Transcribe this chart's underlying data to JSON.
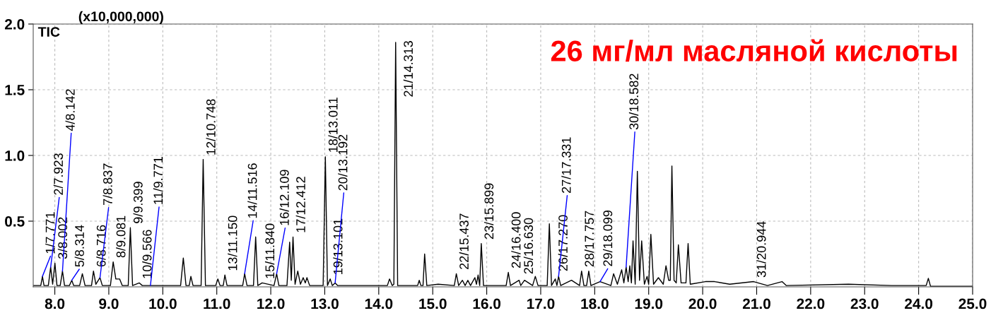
{
  "chart_data": {
    "type": "line",
    "title": "26 мг/мл масляной кислоты",
    "x": [
      7.6,
      7.74,
      7.771,
      7.8,
      7.88,
      7.923,
      7.96,
      8.002,
      8.04,
      8.1,
      8.142,
      8.18,
      8.27,
      8.314,
      8.35,
      8.46,
      8.51,
      8.56,
      8.68,
      8.716,
      8.76,
      8.837,
      8.88,
      9.03,
      9.081,
      9.13,
      9.2,
      9.25,
      9.36,
      9.399,
      9.44,
      9.566,
      9.62,
      9.771,
      10.33,
      10.38,
      10.43,
      10.49,
      10.52,
      10.56,
      10.71,
      10.748,
      10.79,
      10.98,
      11.02,
      11.06,
      11.12,
      11.15,
      11.19,
      11.48,
      11.516,
      11.56,
      11.68,
      11.72,
      11.76,
      11.84,
      12.06,
      12.109,
      12.15,
      12.3,
      12.35,
      12.38,
      12.412,
      12.45,
      12.5,
      12.55,
      12.6,
      12.64,
      12.67,
      12.72,
      12.97,
      13.011,
      13.05,
      13.101,
      13.14,
      13.192,
      13.24,
      14.16,
      14.2,
      14.25,
      14.28,
      14.313,
      14.35,
      14.72,
      14.75,
      14.78,
      14.82,
      14.85,
      14.89,
      15.1,
      15.4,
      15.437,
      15.48,
      15.55,
      15.6,
      15.65,
      15.7,
      15.78,
      15.81,
      15.84,
      15.87,
      15.899,
      15.94,
      16.36,
      16.4,
      16.44,
      16.6,
      16.63,
      16.7,
      16.85,
      16.9,
      16.95,
      17.12,
      17.16,
      17.2,
      17.27,
      17.3,
      17.331,
      17.37,
      17.57,
      17.72,
      17.757,
      17.8,
      17.85,
      17.89,
      17.93,
      18.099,
      18.3,
      18.35,
      18.42,
      18.5,
      18.54,
      18.582,
      18.62,
      18.65,
      18.68,
      18.71,
      18.75,
      18.79,
      18.83,
      18.87,
      18.92,
      18.97,
      19.0,
      19.04,
      19.09,
      19.18,
      19.27,
      19.32,
      19.37,
      19.4,
      19.43,
      19.47,
      19.51,
      19.55,
      19.6,
      19.69,
      19.73,
      19.77,
      20.05,
      20.22,
      20.5,
      20.944,
      21.2,
      21.47,
      21.55,
      22.7,
      23.5,
      24.14,
      24.18,
      24.22,
      25.0
    ],
    "values": [
      0.01,
      0.01,
      0.08,
      0.01,
      0.01,
      0.15,
      0.02,
      0.18,
      0.01,
      0.01,
      0.12,
      0.01,
      0.01,
      0.05,
      0.01,
      0.01,
      0.1,
      0.01,
      0.01,
      0.12,
      0.02,
      0.07,
      0.01,
      0.01,
      0.19,
      0.06,
      0.06,
      0.01,
      0.01,
      0.45,
      0.01,
      0.03,
      0.01,
      0.01,
      0.01,
      0.22,
      0.01,
      0.01,
      0.08,
      0.01,
      0.01,
      0.97,
      0.01,
      0.01,
      0.06,
      0.01,
      0.01,
      0.09,
      0.01,
      0.01,
      0.1,
      0.01,
      0.01,
      0.38,
      0.01,
      0.03,
      0.01,
      0.1,
      0.01,
      0.01,
      0.34,
      0.05,
      0.38,
      0.02,
      0.12,
      0.02,
      0.07,
      0.03,
      0.07,
      0.01,
      0.01,
      0.99,
      0.01,
      0.06,
      0.01,
      0.03,
      0.01,
      0.01,
      0.06,
      0.01,
      0.02,
      1.86,
      0.01,
      0.01,
      0.05,
      0.01,
      0.01,
      0.25,
      0.01,
      0.02,
      0.01,
      0.1,
      0.01,
      0.05,
      0.01,
      0.05,
      0.01,
      0.07,
      0.02,
      0.09,
      0.01,
      0.33,
      0.01,
      0.01,
      0.11,
      0.01,
      0.05,
      0.01,
      0.05,
      0.01,
      0.08,
      0.01,
      0.01,
      0.48,
      0.01,
      0.06,
      0.01,
      0.08,
      0.01,
      0.05,
      0.01,
      0.12,
      0.01,
      0.01,
      0.12,
      0.01,
      0.04,
      0.01,
      0.1,
      0.02,
      0.13,
      0.03,
      0.15,
      0.04,
      0.16,
      0.03,
      0.35,
      0.02,
      0.88,
      0.05,
      0.35,
      0.02,
      0.08,
      0.02,
      0.4,
      0.02,
      0.07,
      0.02,
      0.16,
      0.05,
      0.05,
      0.92,
      0.05,
      0.03,
      0.32,
      0.03,
      0.03,
      0.33,
      0.02,
      0.04,
      0.04,
      0.02,
      0.04,
      0.01,
      0.04,
      0.01,
      0.02,
      0.01,
      0.01,
      0.065,
      0.005,
      0.005
    ],
    "color": "#000000",
    "xlim": [
      7.6,
      25.0
    ],
    "xticks": [
      {
        "value": 8,
        "label": "8.0"
      },
      {
        "value": 9,
        "label": "9.0"
      },
      {
        "value": 10,
        "label": "10.0"
      },
      {
        "value": 11,
        "label": "11.0"
      },
      {
        "value": 12,
        "label": "12.0"
      },
      {
        "value": 13,
        "label": "13.0"
      },
      {
        "value": 14,
        "label": "14.0"
      },
      {
        "value": 15,
        "label": "15.0"
      },
      {
        "value": 16,
        "label": "16.0"
      },
      {
        "value": 17,
        "label": "17.0"
      },
      {
        "value": 18,
        "label": "18.0"
      },
      {
        "value": 19,
        "label": "19.0"
      },
      {
        "value": 20,
        "label": "20.0"
      },
      {
        "value": 21,
        "label": "21.0"
      },
      {
        "value": 22,
        "label": "22.0"
      },
      {
        "value": 23,
        "label": "23.0"
      },
      {
        "value": 24,
        "label": "24.0"
      },
      {
        "value": 25,
        "label": "25.0"
      }
    ],
    "ylim": [
      0,
      2.0
    ],
    "yticks": [
      0.5,
      {
        "value": 1.0,
        "label": "1.0"
      },
      1.5,
      {
        "value": 2.0,
        "label": "2.0"
      }
    ],
    "grid": true,
    "annotations": [
      "(x10,000,000)",
      "TIC",
      {
        "text": "1/7.771",
        "x": 7.771,
        "y": 0.08
      },
      {
        "text": "2/7.923",
        "x": 7.923,
        "y": 0.15
      },
      {
        "text": "3/8.002",
        "x": 8.002,
        "y": 0.18
      },
      {
        "text": "4/8.142",
        "x": 8.142,
        "y": 0.12
      },
      {
        "text": "5/8.314",
        "x": 8.314,
        "y": 0.05
      },
      {
        "text": "6/8.716",
        "x": 8.716,
        "y": 0.12
      },
      {
        "text": "7/8.837",
        "x": 8.837,
        "y": 0.07
      },
      {
        "text": "8/9.081",
        "x": 9.081,
        "y": 0.19
      },
      {
        "text": "9/9.399",
        "x": 9.399,
        "y": 0.45
      },
      {
        "text": "10/9.566",
        "x": 9.566,
        "y": 0.03
      },
      {
        "text": "11/9.771",
        "x": 9.771,
        "y": 0.01
      },
      {
        "text": "12/10.748",
        "x": 10.748,
        "y": 0.97
      },
      {
        "text": "13/11.150",
        "x": 11.15,
        "y": 0.09
      },
      {
        "text": "14/11.516",
        "x": 11.516,
        "y": 0.1
      },
      {
        "text": "15/11.840",
        "x": 11.84,
        "y": 0.03
      },
      {
        "text": "16/12.109",
        "x": 12.109,
        "y": 0.1
      },
      {
        "text": "17/12.412",
        "x": 12.412,
        "y": 0.38
      },
      {
        "text": "18/13.011",
        "x": 13.011,
        "y": 0.99
      },
      {
        "text": "19/13.101",
        "x": 13.101,
        "y": 0.06
      },
      {
        "text": "20/13.192",
        "x": 13.192,
        "y": 0.03
      },
      {
        "text": "21/14.313",
        "x": 14.313,
        "y": 1.86
      },
      {
        "text": "22/15.437",
        "x": 15.437,
        "y": 0.1
      },
      {
        "text": "23/15.899",
        "x": 15.899,
        "y": 0.33
      },
      {
        "text": "24/16.400",
        "x": 16.4,
        "y": 0.11
      },
      {
        "text": "25/16.630",
        "x": 16.63,
        "y": 0.01
      },
      {
        "text": "26/17.270",
        "x": 17.27,
        "y": 0.06
      },
      {
        "text": "27/17.331",
        "x": 17.331,
        "y": 0.08
      },
      {
        "text": "28/17.757",
        "x": 17.757,
        "y": 0.12
      },
      {
        "text": "29/18.099",
        "x": 18.099,
        "y": 0.04
      },
      {
        "text": "30/18.582",
        "x": 18.582,
        "y": 0.15
      },
      {
        "text": "31/20.944",
        "x": 20.944,
        "y": 0.04
      }
    ]
  }
}
